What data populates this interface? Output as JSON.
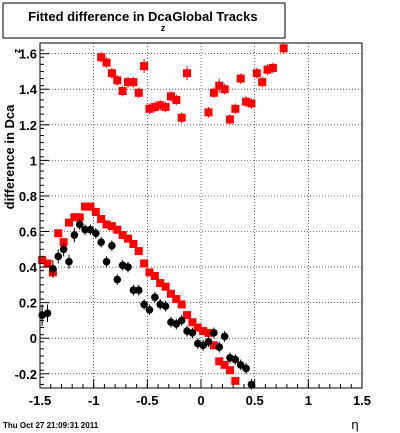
{
  "chart_data": {
    "type": "scatter",
    "title_left": "Fitted difference in Dca",
    "title_sub": "z",
    "title_right": "Global Tracks",
    "ylabel": "difference in Dca",
    "ylabel_sub": "z",
    "xlabel": "η",
    "timestamp": "Thu Oct 27 21:09:31 2011",
    "xlim": [
      -1.5,
      1.5
    ],
    "ylim": [
      -0.28,
      1.66
    ],
    "x_ticks": [
      -1.5,
      -1,
      -0.5,
      0,
      0.5,
      1,
      1.5
    ],
    "x_tick_labels": [
      "-1.5",
      "-1",
      "-0.5",
      "0",
      "0.5",
      "1",
      "1.5"
    ],
    "y_ticks": [
      -0.2,
      0,
      0.2,
      0.4,
      0.6,
      0.8,
      1,
      1.2,
      1.4,
      1.6
    ],
    "y_tick_labels": [
      "-0.2",
      "0",
      "0.2",
      "0.4",
      "0.6",
      "0.8",
      "1",
      "1.2",
      "1.4",
      "1.6"
    ],
    "grid": true,
    "colors": {
      "red": "#ff0000",
      "black": "#000000"
    },
    "series": [
      {
        "color": "red",
        "marker": "square",
        "points": [
          {
            "x": -0.93,
            "y": 1.58,
            "err": 0.03
          },
          {
            "x": -0.88,
            "y": 1.55,
            "err": 0.03
          },
          {
            "x": -0.83,
            "y": 1.49,
            "err": 0.03
          },
          {
            "x": -0.78,
            "y": 1.45,
            "err": 0.03
          },
          {
            "x": -0.73,
            "y": 1.39,
            "err": 0.03
          },
          {
            "x": -0.68,
            "y": 1.44,
            "err": 0.03
          },
          {
            "x": -0.63,
            "y": 1.44,
            "err": 0.03
          },
          {
            "x": -0.58,
            "y": 1.38,
            "err": 0.03
          },
          {
            "x": -0.53,
            "y": 1.53,
            "err": 0.04
          },
          {
            "x": -0.48,
            "y": 1.29,
            "err": 0.03
          },
          {
            "x": -0.43,
            "y": 1.3,
            "err": 0.03
          },
          {
            "x": -0.38,
            "y": 1.31,
            "err": 0.03
          },
          {
            "x": -0.33,
            "y": 1.3,
            "err": 0.03
          },
          {
            "x": -0.28,
            "y": 1.36,
            "err": 0.03
          },
          {
            "x": -0.23,
            "y": 1.34,
            "err": 0.03
          },
          {
            "x": -0.18,
            "y": 1.24,
            "err": 0.03
          },
          {
            "x": -0.13,
            "y": 1.49,
            "err": 0.04
          },
          {
            "x": 0.07,
            "y": 1.27,
            "err": 0.03
          },
          {
            "x": 0.12,
            "y": 1.38,
            "err": 0.03
          },
          {
            "x": 0.17,
            "y": 1.42,
            "err": 0.04
          },
          {
            "x": 0.22,
            "y": 1.4,
            "err": 0.03
          },
          {
            "x": 0.27,
            "y": 1.23,
            "err": 0.03
          },
          {
            "x": 0.32,
            "y": 1.29,
            "err": 0.03
          },
          {
            "x": 0.37,
            "y": 1.46,
            "err": 0.03
          },
          {
            "x": 0.42,
            "y": 1.33,
            "err": 0.03
          },
          {
            "x": 0.47,
            "y": 1.32,
            "err": 0.03
          },
          {
            "x": 0.52,
            "y": 1.49,
            "err": 0.03
          },
          {
            "x": 0.57,
            "y": 1.44,
            "err": 0.03
          },
          {
            "x": 0.62,
            "y": 1.51,
            "err": 0.03
          },
          {
            "x": 0.67,
            "y": 1.52,
            "err": 0.03
          },
          {
            "x": 0.77,
            "y": 1.63,
            "err": 0.03
          },
          {
            "x": -1.48,
            "y": 0.44,
            "err": 0.02
          },
          {
            "x": -1.43,
            "y": 0.42,
            "err": 0.02
          },
          {
            "x": -1.38,
            "y": 0.37,
            "err": 0.02
          },
          {
            "x": -1.33,
            "y": 0.59,
            "err": 0.02
          },
          {
            "x": -1.28,
            "y": 0.54,
            "err": 0.02
          },
          {
            "x": -1.23,
            "y": 0.65,
            "err": 0.02
          },
          {
            "x": -1.18,
            "y": 0.68,
            "err": 0.02
          },
          {
            "x": -1.13,
            "y": 0.68,
            "err": 0.02
          },
          {
            "x": -1.08,
            "y": 0.74,
            "err": 0.02
          },
          {
            "x": -1.03,
            "y": 0.74,
            "err": 0.02
          },
          {
            "x": -0.98,
            "y": 0.71,
            "err": 0.02
          },
          {
            "x": -0.93,
            "y": 0.67,
            "err": 0.02
          },
          {
            "x": -0.88,
            "y": 0.64,
            "err": 0.02
          },
          {
            "x": -0.83,
            "y": 0.63,
            "err": 0.02
          },
          {
            "x": -0.78,
            "y": 0.61,
            "err": 0.02
          },
          {
            "x": -0.73,
            "y": 0.58,
            "err": 0.02
          },
          {
            "x": -0.68,
            "y": 0.56,
            "err": 0.02
          },
          {
            "x": -0.63,
            "y": 0.53,
            "err": 0.02
          },
          {
            "x": -0.58,
            "y": 0.49,
            "err": 0.02
          },
          {
            "x": -0.53,
            "y": 0.42,
            "err": 0.02
          },
          {
            "x": -0.48,
            "y": 0.37,
            "err": 0.02
          },
          {
            "x": -0.43,
            "y": 0.35,
            "err": 0.02
          },
          {
            "x": -0.38,
            "y": 0.31,
            "err": 0.02
          },
          {
            "x": -0.33,
            "y": 0.29,
            "err": 0.02
          },
          {
            "x": -0.28,
            "y": 0.25,
            "err": 0.02
          },
          {
            "x": -0.23,
            "y": 0.22,
            "err": 0.02
          },
          {
            "x": -0.18,
            "y": 0.19,
            "err": 0.02
          },
          {
            "x": -0.13,
            "y": 0.13,
            "err": 0.02
          },
          {
            "x": -0.08,
            "y": 0.09,
            "err": 0.02
          },
          {
            "x": -0.03,
            "y": 0.06,
            "err": 0.02
          },
          {
            "x": 0.02,
            "y": 0.04,
            "err": 0.02
          },
          {
            "x": 0.07,
            "y": 0.03,
            "err": 0.02
          },
          {
            "x": 0.12,
            "y": -0.04,
            "err": 0.02
          },
          {
            "x": 0.17,
            "y": -0.13,
            "err": 0.02
          },
          {
            "x": 0.22,
            "y": -0.15,
            "err": 0.02
          },
          {
            "x": 0.27,
            "y": -0.18,
            "err": 0.02
          },
          {
            "x": 0.32,
            "y": -0.24,
            "err": 0.02
          }
        ]
      },
      {
        "color": "black",
        "marker": "circle",
        "points": [
          {
            "x": -1.48,
            "y": 0.13,
            "err": 0.06
          },
          {
            "x": -1.43,
            "y": 0.14,
            "err": 0.05
          },
          {
            "x": -1.38,
            "y": 0.39,
            "err": 0.05
          },
          {
            "x": -1.33,
            "y": 0.46,
            "err": 0.04
          },
          {
            "x": -1.28,
            "y": 0.5,
            "err": 0.04
          },
          {
            "x": -1.23,
            "y": 0.43,
            "err": 0.04
          },
          {
            "x": -1.18,
            "y": 0.58,
            "err": 0.04
          },
          {
            "x": -1.13,
            "y": 0.64,
            "err": 0.03
          },
          {
            "x": -1.08,
            "y": 0.61,
            "err": 0.03
          },
          {
            "x": -1.03,
            "y": 0.61,
            "err": 0.03
          },
          {
            "x": -0.98,
            "y": 0.59,
            "err": 0.03
          },
          {
            "x": -0.93,
            "y": 0.54,
            "err": 0.03
          },
          {
            "x": -0.88,
            "y": 0.43,
            "err": 0.03
          },
          {
            "x": -0.83,
            "y": 0.52,
            "err": 0.03
          },
          {
            "x": -0.78,
            "y": 0.33,
            "err": 0.03
          },
          {
            "x": -0.73,
            "y": 0.41,
            "err": 0.03
          },
          {
            "x": -0.68,
            "y": 0.4,
            "err": 0.03
          },
          {
            "x": -0.63,
            "y": 0.27,
            "err": 0.03
          },
          {
            "x": -0.58,
            "y": 0.27,
            "err": 0.03
          },
          {
            "x": -0.53,
            "y": 0.19,
            "err": 0.03
          },
          {
            "x": -0.48,
            "y": 0.16,
            "err": 0.03
          },
          {
            "x": -0.43,
            "y": 0.23,
            "err": 0.03
          },
          {
            "x": -0.38,
            "y": 0.19,
            "err": 0.03
          },
          {
            "x": -0.33,
            "y": 0.18,
            "err": 0.03
          },
          {
            "x": -0.28,
            "y": 0.09,
            "err": 0.03
          },
          {
            "x": -0.23,
            "y": 0.08,
            "err": 0.03
          },
          {
            "x": -0.18,
            "y": 0.1,
            "err": 0.03
          },
          {
            "x": -0.13,
            "y": 0.04,
            "err": 0.03
          },
          {
            "x": -0.08,
            "y": 0.03,
            "err": 0.03
          },
          {
            "x": -0.03,
            "y": -0.03,
            "err": 0.03
          },
          {
            "x": 0.02,
            "y": -0.04,
            "err": 0.03
          },
          {
            "x": 0.07,
            "y": -0.02,
            "err": 0.03
          },
          {
            "x": 0.12,
            "y": 0.03,
            "err": 0.03
          },
          {
            "x": 0.17,
            "y": -0.05,
            "err": 0.03
          },
          {
            "x": 0.22,
            "y": 0.01,
            "err": 0.03
          },
          {
            "x": 0.27,
            "y": -0.11,
            "err": 0.03
          },
          {
            "x": 0.32,
            "y": -0.12,
            "err": 0.03
          },
          {
            "x": 0.37,
            "y": -0.15,
            "err": 0.03
          },
          {
            "x": 0.42,
            "y": -0.17,
            "err": 0.03
          },
          {
            "x": 0.47,
            "y": -0.26,
            "err": 0.03
          }
        ]
      }
    ]
  }
}
